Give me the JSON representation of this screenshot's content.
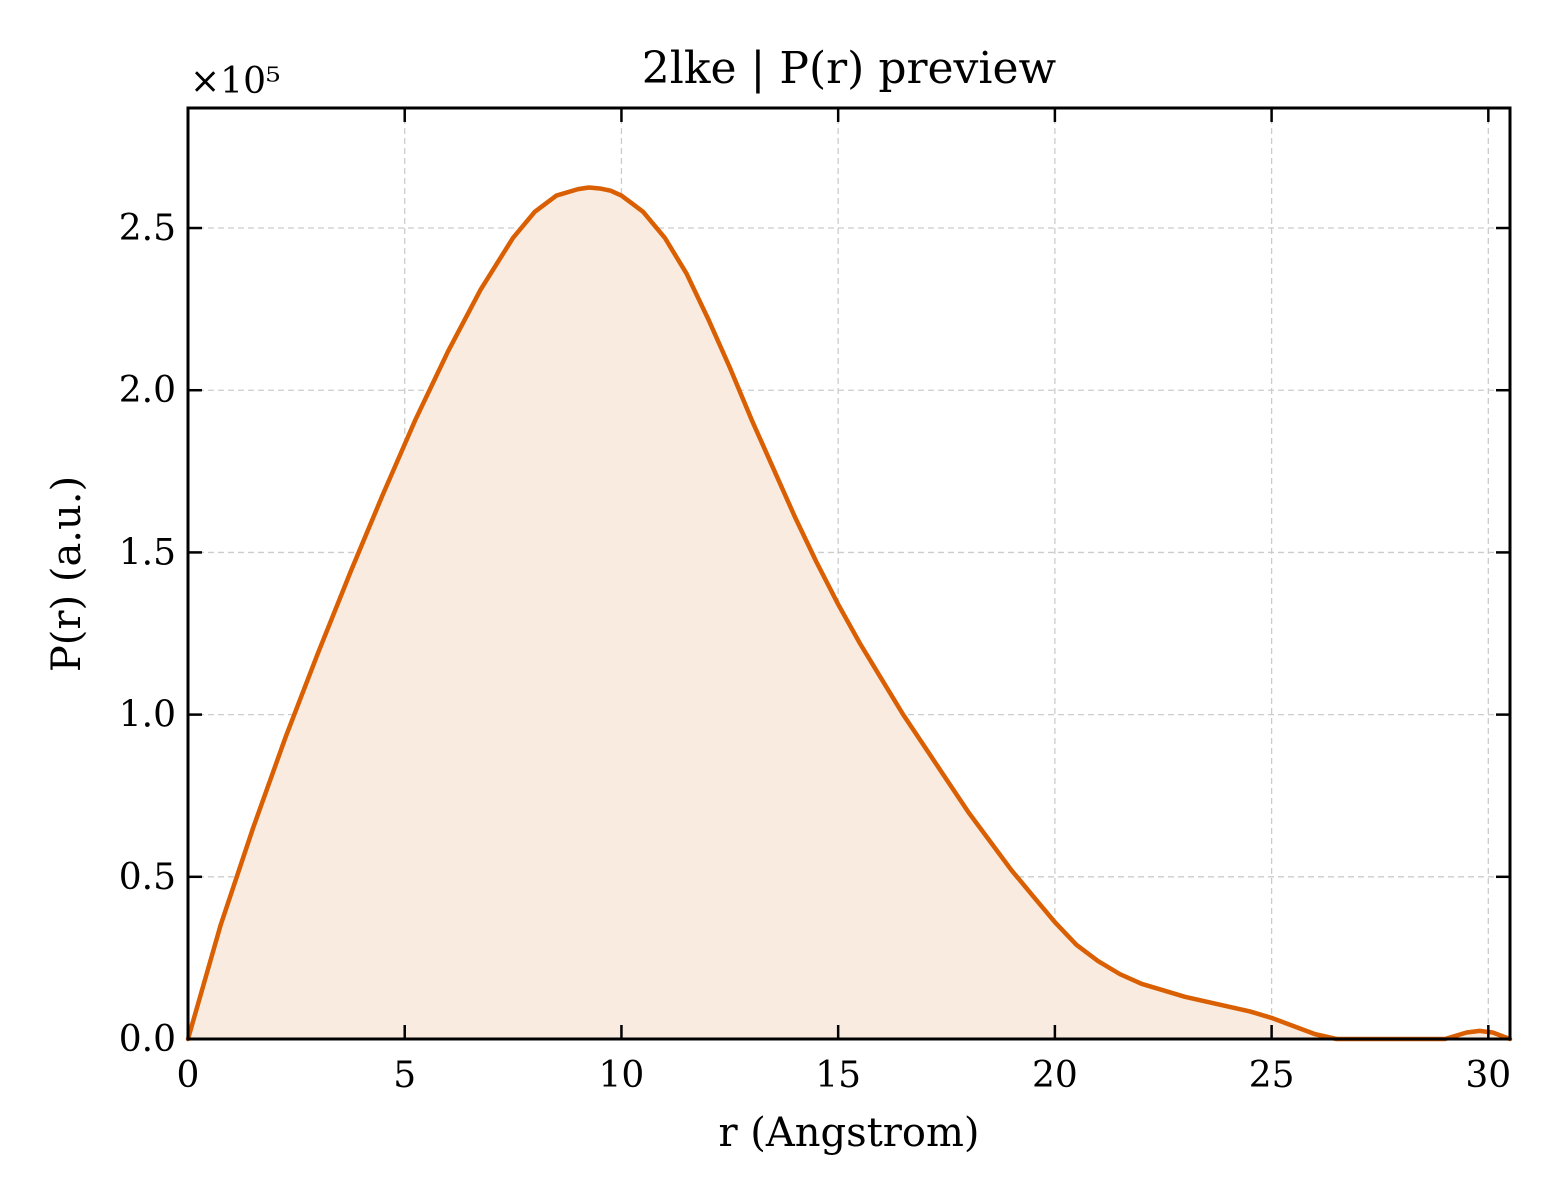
{
  "chart_data": {
    "type": "area",
    "title": "2lke | P(r) preview",
    "xlabel": "r (Angstrom)",
    "ylabel": "P(r) (a.u.)",
    "y_multiplier": "×10⁵",
    "xlim": [
      0,
      30.5
    ],
    "ylim": [
      0,
      2.87
    ],
    "xticks": [
      0,
      5,
      10,
      15,
      20,
      25,
      30
    ],
    "xtick_labels": [
      "0",
      "5",
      "10",
      "15",
      "20",
      "25",
      "30"
    ],
    "yticks": [
      0,
      0.5,
      1.0,
      1.5,
      2.0,
      2.5
    ],
    "ytick_labels": [
      "0.0",
      "0.5",
      "1.0",
      "1.5",
      "2.0",
      "2.5"
    ],
    "grid": true,
    "line_color": "#d95f02",
    "fill_color": "#f9ebe0",
    "series": [
      {
        "x": [
          0,
          0.75,
          1.5,
          2.25,
          3.0,
          3.75,
          4.5,
          5.25,
          6.0,
          6.75,
          7.5,
          8.0,
          8.5,
          9.0,
          9.25,
          9.5,
          9.75,
          10.0,
          10.5,
          11.0,
          11.5,
          12.0,
          12.5,
          13.0,
          13.5,
          14.0,
          14.5,
          15.0,
          15.5,
          16.0,
          16.5,
          17.0,
          17.5,
          18.0,
          18.5,
          19.0,
          19.5,
          20.0,
          20.5,
          21.0,
          21.5,
          22.0,
          22.5,
          23.0,
          23.5,
          24.0,
          24.5,
          25.0,
          25.5,
          26.0,
          26.5,
          27.0,
          27.5,
          28.0,
          28.5,
          29.0,
          29.5,
          29.8,
          30.1,
          30.5
        ],
        "y": [
          0,
          0.35,
          0.65,
          0.93,
          1.19,
          1.44,
          1.68,
          1.91,
          2.12,
          2.31,
          2.47,
          2.55,
          2.6,
          2.62,
          2.625,
          2.622,
          2.615,
          2.6,
          2.55,
          2.47,
          2.36,
          2.22,
          2.07,
          1.91,
          1.76,
          1.61,
          1.47,
          1.34,
          1.22,
          1.11,
          1.0,
          0.9,
          0.8,
          0.7,
          0.61,
          0.52,
          0.44,
          0.36,
          0.29,
          0.24,
          0.2,
          0.17,
          0.15,
          0.13,
          0.115,
          0.1,
          0.085,
          0.065,
          0.04,
          0.015,
          0,
          0,
          0,
          0,
          0,
          0,
          0.02,
          0.025,
          0.02,
          0
        ]
      }
    ]
  }
}
